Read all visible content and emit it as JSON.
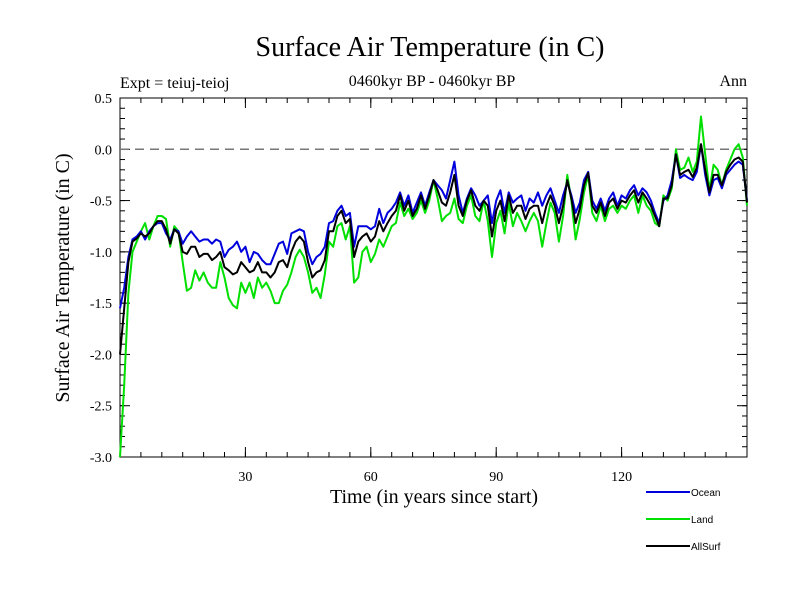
{
  "chart_data": {
    "type": "line",
    "title": "Surface Air Temperature (in C)",
    "subtitle": "0460kyr BP - 0460kyr BP",
    "annotation_left": "Expt = teiuj-teioj",
    "annotation_right": "Ann",
    "xlabel": "Time (in years since start)",
    "ylabel": "Surface Air Temperature (in C)",
    "xlim": [
      0,
      150
    ],
    "ylim": [
      -3.0,
      0.5
    ],
    "xticks": [
      30,
      60,
      90,
      120
    ],
    "yticks": [
      0.5,
      0.0,
      -0.5,
      -1.0,
      -1.5,
      -2.0,
      -2.5,
      -3.0
    ],
    "ytick_labels": [
      "0.5",
      "0.0",
      "-0.5",
      "-1.0",
      "-1.5",
      "-2.0",
      "-2.5",
      "-3.0"
    ],
    "reference_line": 0.0,
    "series": [
      {
        "name": "Ocean",
        "color": "#0000dd",
        "values": [
          -1.55,
          -1.35,
          -1.05,
          -0.88,
          -0.85,
          -0.8,
          -0.88,
          -0.8,
          -0.75,
          -0.72,
          -0.72,
          -0.82,
          -0.88,
          -0.78,
          -0.8,
          -0.92,
          -0.85,
          -0.8,
          -0.85,
          -0.9,
          -0.88,
          -0.88,
          -0.92,
          -0.88,
          -0.9,
          -1.05,
          -0.98,
          -0.95,
          -0.9,
          -1.0,
          -0.95,
          -1.1,
          -1.0,
          -1.02,
          -1.08,
          -1.12,
          -1.12,
          -1.02,
          -0.92,
          -0.9,
          -1.02,
          -0.82,
          -0.8,
          -0.78,
          -0.8,
          -1.0,
          -1.12,
          -1.05,
          -1.02,
          -0.95,
          -0.72,
          -0.7,
          -0.6,
          -0.55,
          -0.65,
          -0.62,
          -0.95,
          -0.75,
          -0.75,
          -0.75,
          -0.78,
          -0.75,
          -0.58,
          -0.72,
          -0.62,
          -0.58,
          -0.52,
          -0.42,
          -0.55,
          -0.45,
          -0.62,
          -0.52,
          -0.42,
          -0.55,
          -0.42,
          -0.3,
          -0.35,
          -0.4,
          -0.48,
          -0.3,
          -0.12,
          -0.45,
          -0.62,
          -0.48,
          -0.38,
          -0.45,
          -0.55,
          -0.5,
          -0.45,
          -0.72,
          -0.5,
          -0.4,
          -0.62,
          -0.42,
          -0.52,
          -0.48,
          -0.45,
          -0.6,
          -0.48,
          -0.52,
          -0.42,
          -0.55,
          -0.45,
          -0.38,
          -0.5,
          -0.62,
          -0.45,
          -0.32,
          -0.45,
          -0.62,
          -0.52,
          -0.3,
          -0.22,
          -0.5,
          -0.58,
          -0.48,
          -0.6,
          -0.48,
          -0.42,
          -0.55,
          -0.45,
          -0.48,
          -0.4,
          -0.35,
          -0.45,
          -0.38,
          -0.42,
          -0.5,
          -0.62,
          -0.72,
          -0.5,
          -0.45,
          -0.3,
          -0.05,
          -0.28,
          -0.25,
          -0.28,
          -0.3,
          -0.22,
          0.05,
          -0.25,
          -0.45,
          -0.3,
          -0.28,
          -0.38,
          -0.25,
          -0.2,
          -0.15,
          -0.12,
          -0.15,
          -0.5
        ]
      },
      {
        "name": "Land",
        "color": "#00e000",
        "values": [
          -3.0,
          -2.3,
          -1.4,
          -1.0,
          -0.9,
          -0.8,
          -0.72,
          -0.88,
          -0.75,
          -0.65,
          -0.65,
          -0.68,
          -0.95,
          -0.75,
          -0.8,
          -1.1,
          -1.38,
          -1.35,
          -1.18,
          -1.28,
          -1.2,
          -1.3,
          -1.35,
          -1.35,
          -1.1,
          -1.25,
          -1.45,
          -1.52,
          -1.55,
          -1.3,
          -1.4,
          -1.3,
          -1.45,
          -1.25,
          -1.35,
          -1.3,
          -1.38,
          -1.5,
          -1.5,
          -1.38,
          -1.32,
          -1.2,
          -1.05,
          -0.98,
          -1.05,
          -1.2,
          -1.4,
          -1.35,
          -1.45,
          -1.22,
          -0.9,
          -0.95,
          -0.75,
          -0.72,
          -0.88,
          -0.75,
          -1.3,
          -1.25,
          -1.0,
          -0.95,
          -1.1,
          -1.02,
          -0.88,
          -0.95,
          -0.85,
          -0.75,
          -0.72,
          -0.52,
          -0.65,
          -0.58,
          -0.68,
          -0.62,
          -0.5,
          -0.62,
          -0.5,
          -0.3,
          -0.48,
          -0.7,
          -0.65,
          -0.62,
          -0.48,
          -0.68,
          -0.72,
          -0.55,
          -0.45,
          -0.65,
          -0.7,
          -0.5,
          -0.7,
          -1.05,
          -0.72,
          -0.6,
          -0.82,
          -0.52,
          -0.75,
          -0.62,
          -0.7,
          -0.8,
          -0.7,
          -0.62,
          -0.7,
          -0.95,
          -0.72,
          -0.52,
          -0.62,
          -0.9,
          -0.65,
          -0.25,
          -0.5,
          -0.88,
          -0.68,
          -0.42,
          -0.25,
          -0.62,
          -0.7,
          -0.55,
          -0.7,
          -0.58,
          -0.55,
          -0.62,
          -0.55,
          -0.58,
          -0.5,
          -0.45,
          -0.62,
          -0.45,
          -0.55,
          -0.6,
          -0.72,
          -0.75,
          -0.45,
          -0.5,
          -0.38,
          0.0,
          -0.2,
          -0.18,
          -0.08,
          -0.22,
          -0.12,
          0.32,
          -0.05,
          -0.4,
          -0.15,
          -0.2,
          -0.35,
          -0.2,
          -0.1,
          0.0,
          0.05,
          -0.08,
          -0.55
        ]
      },
      {
        "name": "AllSurf",
        "color": "#000000",
        "values": [
          -2.0,
          -1.55,
          -1.1,
          -0.9,
          -0.87,
          -0.82,
          -0.85,
          -0.82,
          -0.75,
          -0.7,
          -0.7,
          -0.78,
          -0.92,
          -0.78,
          -0.82,
          -1.0,
          -1.02,
          -0.95,
          -0.95,
          -1.05,
          -1.02,
          -1.02,
          -1.08,
          -1.05,
          -1.0,
          -1.15,
          -1.18,
          -1.22,
          -1.2,
          -1.1,
          -1.15,
          -1.2,
          -1.18,
          -1.1,
          -1.2,
          -1.2,
          -1.25,
          -1.2,
          -1.1,
          -1.08,
          -1.15,
          -1.0,
          -0.9,
          -0.85,
          -0.9,
          -1.1,
          -1.25,
          -1.2,
          -1.18,
          -1.08,
          -0.8,
          -0.8,
          -0.65,
          -0.6,
          -0.72,
          -0.68,
          -1.05,
          -0.9,
          -0.85,
          -0.82,
          -0.9,
          -0.85,
          -0.7,
          -0.8,
          -0.72,
          -0.65,
          -0.6,
          -0.45,
          -0.6,
          -0.5,
          -0.65,
          -0.58,
          -0.45,
          -0.58,
          -0.45,
          -0.3,
          -0.4,
          -0.52,
          -0.55,
          -0.42,
          -0.25,
          -0.55,
          -0.65,
          -0.5,
          -0.4,
          -0.55,
          -0.6,
          -0.5,
          -0.55,
          -0.85,
          -0.6,
          -0.5,
          -0.7,
          -0.45,
          -0.62,
          -0.55,
          -0.55,
          -0.68,
          -0.58,
          -0.55,
          -0.55,
          -0.72,
          -0.55,
          -0.45,
          -0.55,
          -0.72,
          -0.55,
          -0.3,
          -0.48,
          -0.72,
          -0.58,
          -0.35,
          -0.23,
          -0.55,
          -0.62,
          -0.52,
          -0.65,
          -0.52,
          -0.48,
          -0.58,
          -0.5,
          -0.52,
          -0.45,
          -0.4,
          -0.52,
          -0.42,
          -0.48,
          -0.55,
          -0.65,
          -0.75,
          -0.48,
          -0.48,
          -0.35,
          -0.05,
          -0.25,
          -0.22,
          -0.2,
          -0.27,
          -0.18,
          0.05,
          -0.2,
          -0.42,
          -0.25,
          -0.25,
          -0.35,
          -0.22,
          -0.15,
          -0.1,
          -0.08,
          -0.12,
          -0.52
        ]
      }
    ]
  }
}
